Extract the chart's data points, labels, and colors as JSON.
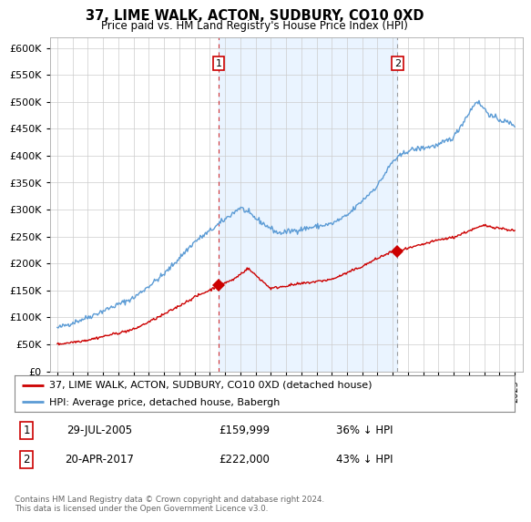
{
  "title": "37, LIME WALK, ACTON, SUDBURY, CO10 0XD",
  "subtitle": "Price paid vs. HM Land Registry's House Price Index (HPI)",
  "ylabel_ticks": [
    "£0",
    "£50K",
    "£100K",
    "£150K",
    "£200K",
    "£250K",
    "£300K",
    "£350K",
    "£400K",
    "£450K",
    "£500K",
    "£550K",
    "£600K"
  ],
  "ytick_values": [
    0,
    50000,
    100000,
    150000,
    200000,
    250000,
    300000,
    350000,
    400000,
    450000,
    500000,
    550000,
    600000
  ],
  "ylim": [
    0,
    620000
  ],
  "xlim_start": 1994.5,
  "xlim_end": 2025.5,
  "hpi_color": "#5b9bd5",
  "hpi_fill_color": "#ddeeff",
  "price_color": "#cc0000",
  "marker1_date": 2005.57,
  "marker1_price": 159999,
  "marker1_label": "29-JUL-2005",
  "marker1_amount": "£159,999",
  "marker1_pct": "36% ↓ HPI",
  "marker2_date": 2017.3,
  "marker2_price": 222000,
  "marker2_label": "20-APR-2017",
  "marker2_amount": "£222,000",
  "marker2_pct": "43% ↓ HPI",
  "legend_line1": "37, LIME WALK, ACTON, SUDBURY, CO10 0XD (detached house)",
  "legend_line2": "HPI: Average price, detached house, Babergh",
  "footer": "Contains HM Land Registry data © Crown copyright and database right 2024.\nThis data is licensed under the Open Government Licence v3.0.",
  "background_color": "#ffffff",
  "grid_color": "#cccccc"
}
